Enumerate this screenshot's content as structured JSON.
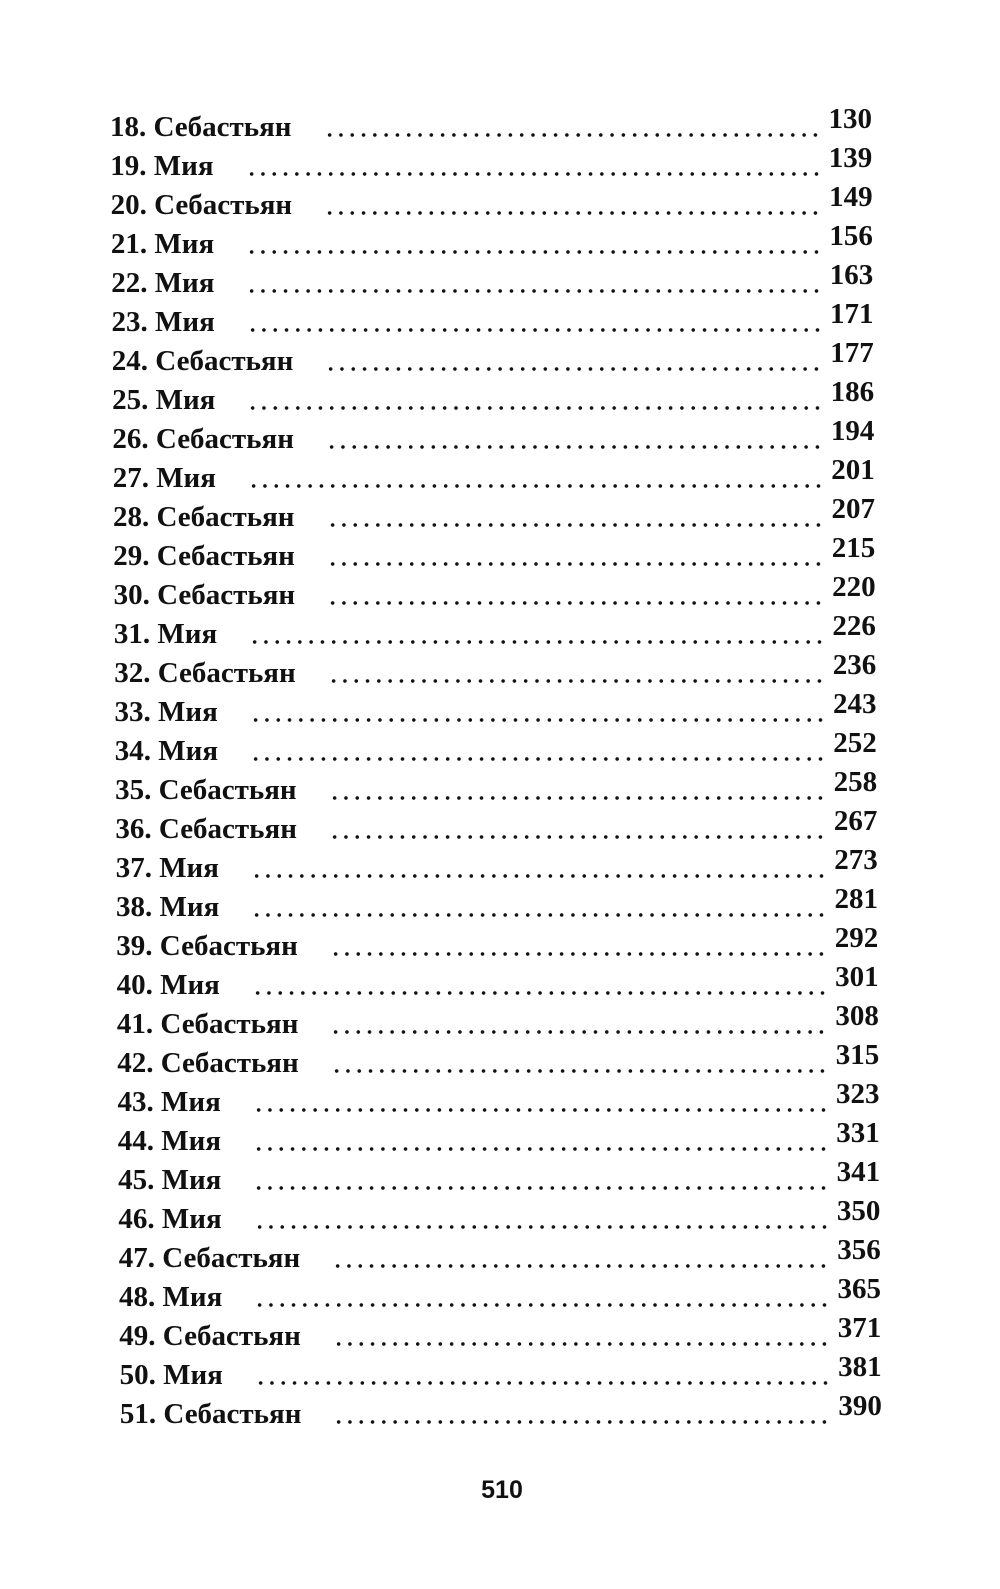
{
  "toc": [
    {
      "num": "18.",
      "title": "Себастьян",
      "page": "130"
    },
    {
      "num": "19.",
      "title": "Мия",
      "page": "139"
    },
    {
      "num": "20.",
      "title": "Себастьян",
      "page": "149"
    },
    {
      "num": "21.",
      "title": "Мия",
      "page": "156"
    },
    {
      "num": "22.",
      "title": "Мия",
      "page": "163"
    },
    {
      "num": "23.",
      "title": "Мия",
      "page": "171"
    },
    {
      "num": "24.",
      "title": "Себастьян",
      "page": "177"
    },
    {
      "num": "25.",
      "title": "Мия",
      "page": "186"
    },
    {
      "num": "26.",
      "title": "Себастьян",
      "page": "194"
    },
    {
      "num": "27.",
      "title": "Мия",
      "page": "201"
    },
    {
      "num": "28.",
      "title": "Себастьян",
      "page": "207"
    },
    {
      "num": "29.",
      "title": "Себастьян",
      "page": "215"
    },
    {
      "num": "30.",
      "title": "Себастьян",
      "page": "220"
    },
    {
      "num": "31.",
      "title": "Мия",
      "page": "226"
    },
    {
      "num": "32.",
      "title": "Себастьян",
      "page": "236"
    },
    {
      "num": "33.",
      "title": "Мия",
      "page": "243"
    },
    {
      "num": "34.",
      "title": "Мия",
      "page": "252"
    },
    {
      "num": "35.",
      "title": "Себастьян",
      "page": "258"
    },
    {
      "num": "36.",
      "title": "Себастьян",
      "page": "267"
    },
    {
      "num": "37.",
      "title": "Мия",
      "page": "273"
    },
    {
      "num": "38.",
      "title": "Мия",
      "page": "281"
    },
    {
      "num": "39.",
      "title": "Себастьян",
      "page": "292"
    },
    {
      "num": "40.",
      "title": "Мия",
      "page": "301"
    },
    {
      "num": "41.",
      "title": "Себастьян",
      "page": "308"
    },
    {
      "num": "42.",
      "title": "Себастьян",
      "page": "315"
    },
    {
      "num": "43.",
      "title": "Мия",
      "page": "323"
    },
    {
      "num": "44.",
      "title": "Мия",
      "page": "331"
    },
    {
      "num": "45.",
      "title": "Мия",
      "page": "341"
    },
    {
      "num": "46.",
      "title": "Мия",
      "page": "350"
    },
    {
      "num": "47.",
      "title": "Себастьян",
      "page": "356"
    },
    {
      "num": "48.",
      "title": "Мия",
      "page": "365"
    },
    {
      "num": "49.",
      "title": "Себастьян",
      "page": "371"
    },
    {
      "num": "50.",
      "title": "Мия",
      "page": "381"
    },
    {
      "num": "51.",
      "title": "Себастьян",
      "page": "390"
    }
  ],
  "folio": "510"
}
